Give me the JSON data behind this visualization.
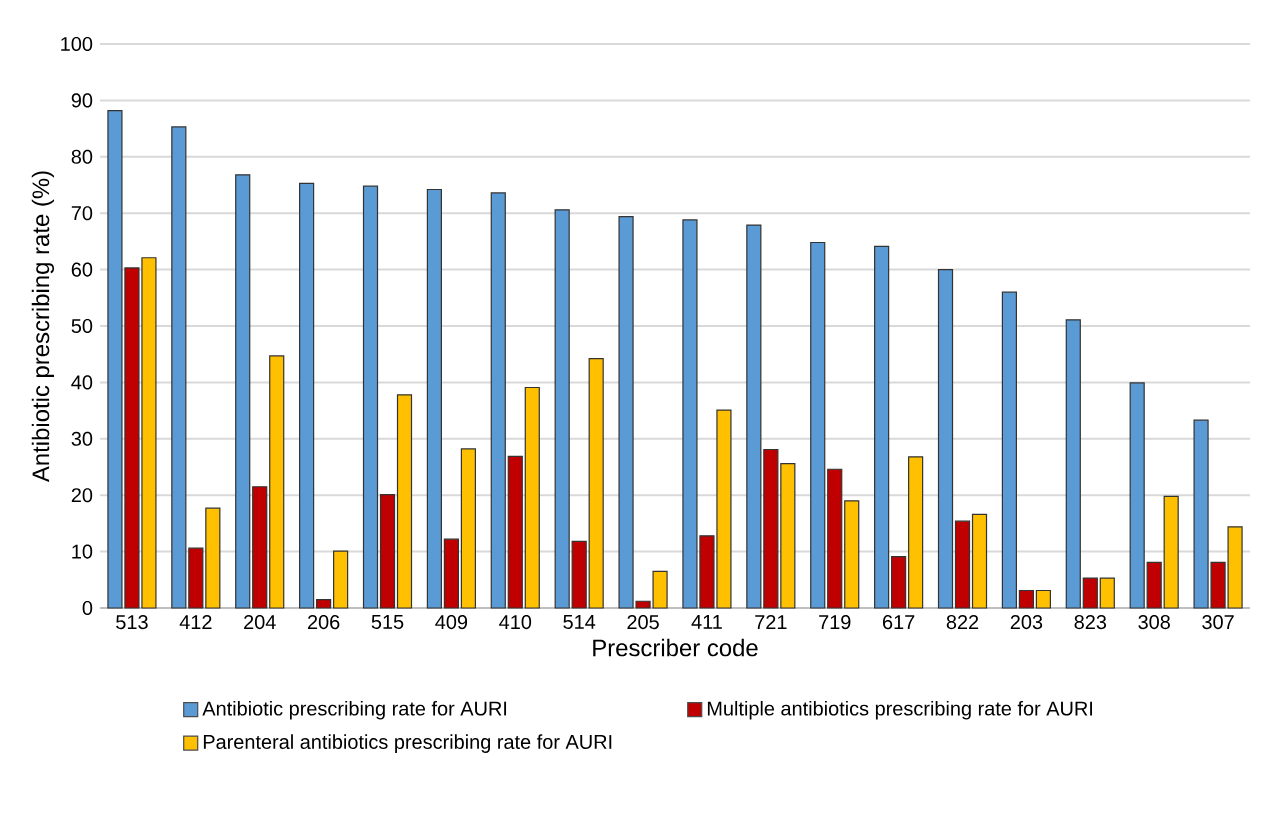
{
  "chart_data": {
    "type": "bar",
    "xlabel": "Prescriber code",
    "ylabel": "Antibiotic prescribing rate (%)",
    "categories": [
      "513",
      "412",
      "204",
      "206",
      "515",
      "409",
      "410",
      "514",
      "205",
      "411",
      "721",
      "719",
      "617",
      "822",
      "203",
      "823",
      "308",
      "307"
    ],
    "series": [
      {
        "name": "Antibiotic prescribing rate for AURI",
        "color": "#5b9bd5",
        "values": [
          88.2,
          85.3,
          76.8,
          75.3,
          74.8,
          74.2,
          73.6,
          70.6,
          69.4,
          68.8,
          67.9,
          64.8,
          64.1,
          60.0,
          56.0,
          51.1,
          39.9,
          33.3
        ]
      },
      {
        "name": "Multiple antibiotics prescribing rate for AURI",
        "color": "#c00000",
        "values": [
          60.3,
          10.6,
          21.5,
          1.5,
          20.1,
          12.2,
          26.9,
          11.8,
          1.2,
          12.8,
          28.1,
          24.6,
          9.1,
          15.4,
          3.1,
          5.3,
          8.1,
          8.1
        ]
      },
      {
        "name": "Parenteral antibiotics prescribing rate for AURI",
        "color": "#ffc000",
        "values": [
          62.1,
          17.7,
          44.7,
          10.1,
          37.8,
          28.2,
          39.1,
          44.2,
          6.5,
          35.1,
          25.6,
          19.0,
          26.8,
          16.6,
          3.1,
          5.3,
          19.8,
          14.4
        ]
      }
    ],
    "ylim": [
      0,
      100
    ],
    "yticks": [
      0,
      10,
      20,
      30,
      40,
      50,
      60,
      70,
      80,
      90,
      100
    ],
    "grid": "y",
    "legend": "bottom"
  }
}
